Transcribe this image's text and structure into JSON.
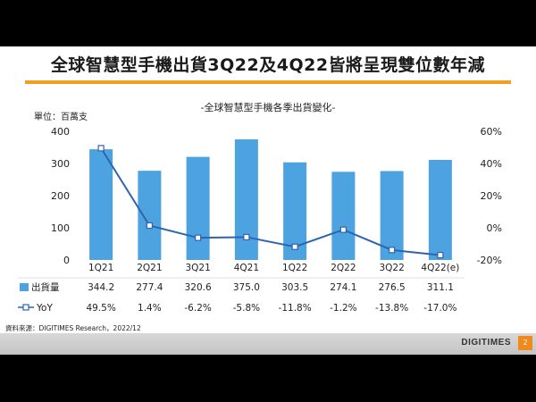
{
  "slide": {
    "title": "全球智慧型手機出貨3Q22及4Q22皆將呈現雙位數年減",
    "source": "資料來源：DIGITIMES Research，2022/12",
    "brand": "DIGITIMES",
    "page_number": "2",
    "accent_color": "#f0a020"
  },
  "chart_data": {
    "type": "bar",
    "title": "-全球智慧型手機各季出貨變化-",
    "unit_label": "單位：百萬支",
    "categories": [
      "1Q21",
      "2Q21",
      "3Q21",
      "4Q21",
      "1Q22",
      "2Q22",
      "3Q22",
      "4Q22(e)"
    ],
    "series": [
      {
        "name": "出貨量",
        "type": "bar",
        "axis": "left",
        "color": "#4da3e0",
        "values": [
          344.2,
          277.4,
          320.6,
          375.0,
          303.5,
          274.1,
          276.5,
          311.1
        ],
        "labels": [
          "344.2",
          "277.4",
          "320.6",
          "375.0",
          "303.5",
          "274.1",
          "276.5",
          "311.1"
        ]
      },
      {
        "name": "YoY",
        "type": "line",
        "axis": "right",
        "color": "#2f64b0",
        "values": [
          49.5,
          1.4,
          -6.2,
          -5.8,
          -11.8,
          -1.2,
          -13.8,
          -17.0
        ],
        "labels": [
          "49.5%",
          "1.4%",
          "-6.2%",
          "-5.8%",
          "-11.8%",
          "-1.2%",
          "-13.8%",
          "-17.0%"
        ]
      }
    ],
    "y_left": {
      "min": 0,
      "max": 400,
      "ticks": [
        "0",
        "100",
        "200",
        "300",
        "400"
      ],
      "tick_values": [
        0,
        100,
        200,
        300,
        400
      ]
    },
    "y_right": {
      "min": -20,
      "max": 60,
      "ticks": [
        "-20%",
        "0%",
        "20%",
        "40%",
        "60%"
      ],
      "tick_values": [
        -20,
        0,
        20,
        40,
        60
      ]
    },
    "grid": false,
    "legend": "bottom-table"
  }
}
